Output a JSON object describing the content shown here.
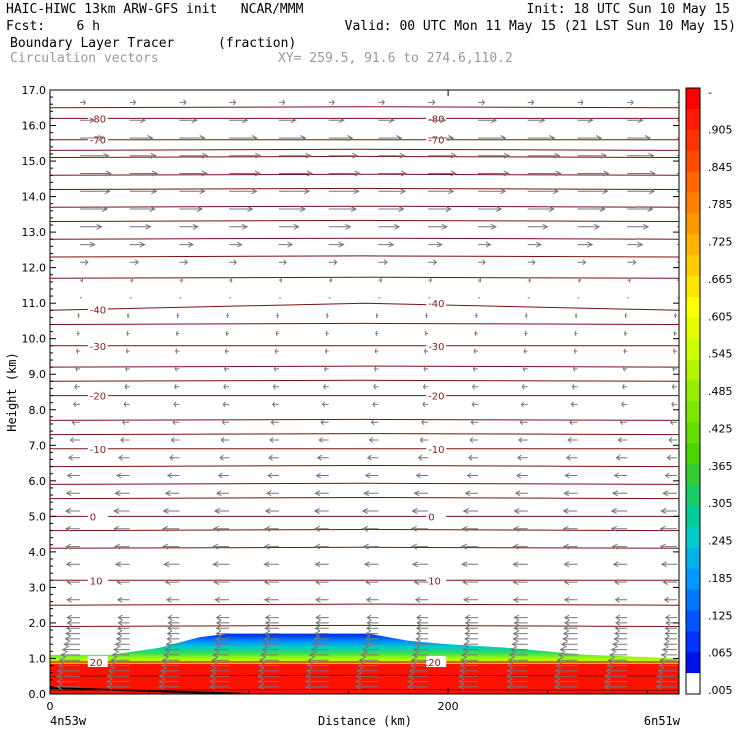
{
  "header": {
    "line1_left": "HAIC-HIWC 13km ARW-GFS init   NCAR/MMM",
    "line1_right": "Init: 18 UTC Sun 10 May 15",
    "line2_left": "Fcst:    6 h",
    "line2_right": "Valid: 00 UTC Mon 11 May 15 (21 LST Sun 10 May 15)",
    "line3_left": "Boundary Layer Tracer",
    "line3_units": "(fraction)",
    "line4_left": "Circulation vectors",
    "line4_right": "XY= 259.5, 91.6 to 274.6,110.2"
  },
  "chart_data": {
    "type": "cross-section",
    "xlabel": "Distance (km)",
    "ylabel": "Height (km)",
    "x_left_label": "4n53w",
    "x_right_label": "6n51w",
    "x_ticks": [
      0,
      200
    ],
    "x_range": [
      0,
      316
    ],
    "ylim": [
      0,
      17
    ],
    "y_ticks": [
      "0.0",
      "1.0",
      "2.0",
      "3.0",
      "4.0",
      "5.0",
      "6.0",
      "7.0",
      "8.0",
      "9.0",
      "10.0",
      "11.0",
      "12.0",
      "13.0",
      "14.0",
      "15.0",
      "16.0",
      "17.0"
    ],
    "colorbar": {
      "labels": [
        "-",
        ".905",
        ".845",
        ".785",
        ".725",
        ".665",
        ".605",
        ".545",
        ".485",
        ".425",
        ".365",
        ".305",
        ".245",
        ".185",
        ".125",
        ".065",
        ".005"
      ],
      "colors": [
        "#ff0000",
        "#ff1a00",
        "#ff3300",
        "#ff4d00",
        "#ff6600",
        "#ff8000",
        "#ff9900",
        "#ffb300",
        "#ffcc00",
        "#ffe600",
        "#ffff00",
        "#e6ff00",
        "#ccff00",
        "#b3f500",
        "#99ee00",
        "#7fe600",
        "#66dd00",
        "#4dd500",
        "#33cc33",
        "#1acc66",
        "#00cc99",
        "#00cccc",
        "#00b3e6",
        "#0099ff",
        "#0077ff",
        "#0055ff",
        "#0033ff",
        "#0011ee",
        "#ffffff"
      ]
    },
    "temperature_contours": [
      {
        "label": "-80",
        "height": [
          16.2,
          16.2,
          16.2
        ]
      },
      {
        "label": "-70",
        "height": [
          15.6,
          15.6,
          15.6
        ]
      },
      {
        "label": "-40",
        "height": [
          10.8,
          11.0,
          10.8
        ]
      },
      {
        "label": "-30",
        "height": [
          9.8,
          9.8,
          9.8
        ]
      },
      {
        "label": "-20",
        "height": [
          8.4,
          8.4,
          8.4
        ]
      },
      {
        "label": "-10",
        "height": [
          6.9,
          6.9,
          6.9
        ]
      },
      {
        "label": "0",
        "height": [
          5.0,
          5.0,
          5.0
        ]
      },
      {
        "label": "10",
        "height": [
          3.2,
          3.2,
          3.2
        ]
      },
      {
        "label": "20",
        "height": [
          0.9,
          0.9,
          0.9
        ]
      }
    ],
    "extra_contour_heights": [
      0.1,
      0.5,
      1.9,
      2.5,
      4.1,
      4.6,
      5.5,
      5.9,
      6.4,
      7.3,
      7.7,
      8.8,
      9.2,
      10.4,
      11.7,
      12.3,
      12.8,
      13.3,
      13.7,
      14.2,
      14.6,
      15.1,
      15.3,
      16.5
    ],
    "tracer_layer": [
      {
        "x": 0,
        "top": 1.1
      },
      {
        "x": 30,
        "top": 1.1
      },
      {
        "x": 55,
        "top": 1.3
      },
      {
        "x": 75,
        "top": 1.6
      },
      {
        "x": 90,
        "top": 1.7
      },
      {
        "x": 160,
        "top": 1.7
      },
      {
        "x": 180,
        "top": 1.5
      },
      {
        "x": 200,
        "top": 1.4
      },
      {
        "x": 230,
        "top": 1.3
      },
      {
        "x": 270,
        "top": 1.1
      },
      {
        "x": 316,
        "top": 1.0
      }
    ],
    "wind_profile": [
      {
        "height": 16.5,
        "u": 0.2
      },
      {
        "height": 16.0,
        "u": 0.7
      },
      {
        "height": 15.5,
        "u": 0.9
      },
      {
        "height": 15.0,
        "u": 1.0
      },
      {
        "height": 14.5,
        "u": 1.0
      },
      {
        "height": 14.0,
        "u": 0.9
      },
      {
        "height": 13.5,
        "u": 0.8
      },
      {
        "height": 13.0,
        "u": 0.6
      },
      {
        "height": 12.5,
        "u": 0.4
      },
      {
        "height": 12.0,
        "u": 0.2
      },
      {
        "height": 11.5,
        "u": 0.05
      },
      {
        "height": 11.0,
        "u": -0.05
      },
      {
        "height": 10.0,
        "u": -0.1
      },
      {
        "height": 9.0,
        "u": -0.15
      },
      {
        "height": 8.0,
        "u": -0.2
      },
      {
        "height": 7.0,
        "u": -0.3
      },
      {
        "height": 6.0,
        "u": -0.4
      },
      {
        "height": 5.0,
        "u": -0.5
      },
      {
        "height": 4.0,
        "u": -0.5
      },
      {
        "height": 3.0,
        "u": -0.45
      },
      {
        "height": 2.0,
        "u": -0.4
      },
      {
        "height": 1.5,
        "u": -0.45
      },
      {
        "height": 1.0,
        "u": -0.6
      },
      {
        "height": 0.5,
        "u": -0.7
      },
      {
        "height": 0.2,
        "u": -0.7
      }
    ]
  }
}
